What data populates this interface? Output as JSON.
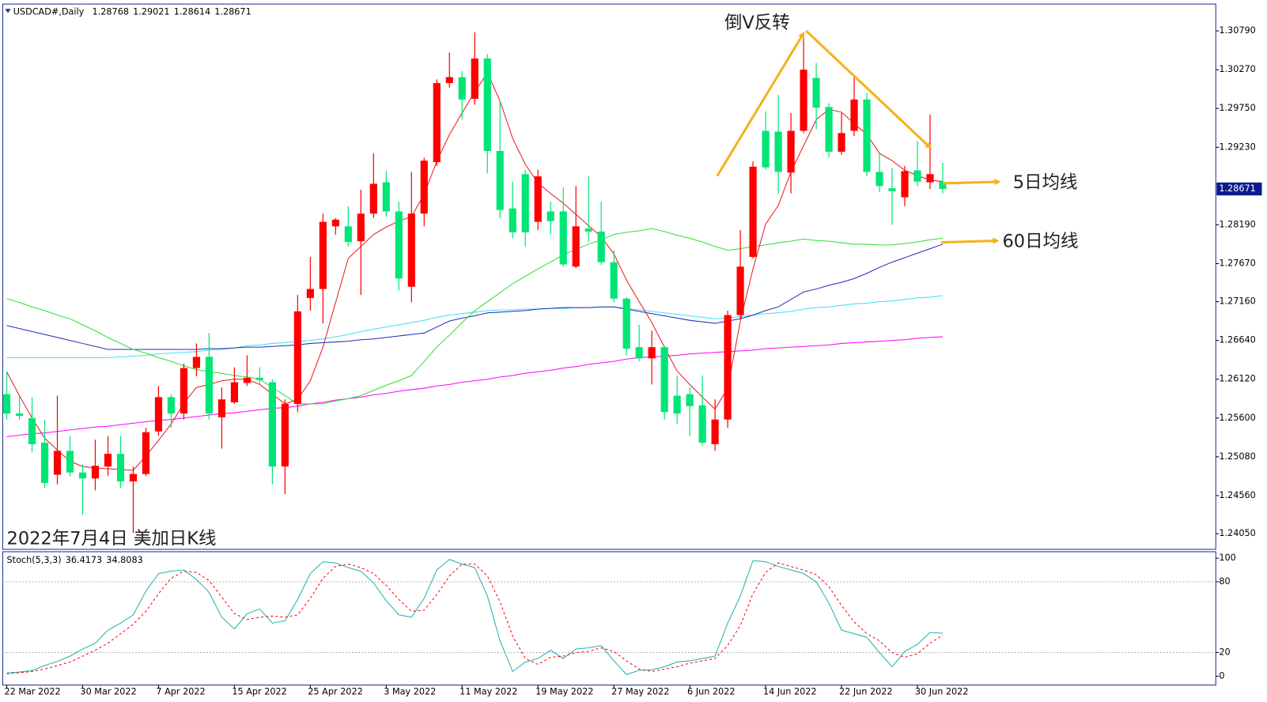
{
  "chart_data": [
    {
      "type": "candlestick",
      "title": "USDCAD#,Daily",
      "categories": [
        "22 Mar 2022",
        null,
        null,
        null,
        null,
        null,
        "30 Mar 2022",
        null,
        null,
        null,
        null,
        null,
        "7 Apr 2022",
        null,
        null,
        null,
        null,
        null,
        "15 Apr 2022",
        null,
        null,
        null,
        null,
        null,
        "25 Apr 2022",
        null,
        null,
        null,
        null,
        null,
        "3 May 2022",
        null,
        null,
        null,
        null,
        null,
        "11 May 2022",
        null,
        null,
        null,
        null,
        null,
        "19 May 2022",
        null,
        null,
        null,
        null,
        null,
        "27 May 2022",
        null,
        null,
        null,
        null,
        null,
        "6 Jun 2022",
        null,
        null,
        null,
        null,
        null,
        "14 Jun 2022",
        null,
        null,
        null,
        null,
        null,
        "22 Jun 2022",
        null,
        null,
        null,
        null,
        null,
        "30 Jun 2022",
        null,
        null
      ],
      "open": [
        1.2592,
        1.2566,
        1.256,
        1.2527,
        1.2484,
        1.2516,
        1.2487,
        1.2479,
        1.2495,
        1.2512,
        1.2475,
        1.2485,
        1.2542,
        1.2588,
        1.2566,
        1.2627,
        1.2642,
        1.2561,
        1.2581,
        1.2607,
        1.2614,
        1.2608,
        1.2495,
        1.2579,
        1.2721,
        1.2733,
        1.2817,
        1.2817,
        1.2797,
        1.2834,
        1.2876,
        1.2837,
        1.2736,
        1.2834,
        1.2903,
        1.3009,
        1.3017,
        1.2988,
        1.3042,
        1.2918,
        1.2841,
        1.2887,
        1.2823,
        1.2837,
        1.2837,
        1.2763,
        1.2814,
        1.281,
        1.2769,
        1.272,
        1.2655,
        1.264,
        1.2655,
        1.259,
        1.2592,
        1.2577,
        1.2525,
        1.2558,
        1.2698,
        1.2776,
        1.2945,
        1.2944,
        1.2889,
        1.2945,
        1.3016,
        1.2977,
        1.2917,
        1.2945,
        1.2987,
        1.289,
        1.2868,
        1.2856,
        1.2892,
        1.2876,
        1.28768
      ],
      "high": [
        1.2622,
        1.259,
        1.2588,
        1.2558,
        1.259,
        1.2536,
        1.2498,
        1.2531,
        1.2536,
        1.2536,
        1.2495,
        1.2547,
        1.2603,
        1.2592,
        1.2633,
        1.266,
        1.2674,
        1.2601,
        1.2628,
        1.2644,
        1.2628,
        1.2612,
        1.2585,
        1.2725,
        1.2776,
        1.2834,
        1.2828,
        1.2844,
        1.2866,
        1.2915,
        1.2891,
        1.285,
        1.289,
        1.2909,
        1.3014,
        1.305,
        1.3025,
        1.3077,
        1.3048,
        1.2985,
        1.2877,
        1.2893,
        1.2893,
        1.285,
        1.2869,
        1.2871,
        1.2884,
        1.285,
        1.2785,
        1.2722,
        1.2685,
        1.2677,
        1.2657,
        1.2617,
        1.2601,
        1.2617,
        1.2585,
        1.2704,
        1.2812,
        1.2904,
        1.2971,
        1.2993,
        1.2969,
        1.3077,
        1.3036,
        1.2982,
        1.2969,
        1.3017,
        1.2996,
        1.2915,
        1.2895,
        1.2898,
        1.2931,
        1.2967,
        1.29021
      ],
      "low": [
        1.2558,
        1.2558,
        1.2514,
        1.2466,
        1.2471,
        1.2482,
        1.243,
        1.2463,
        1.2482,
        1.2466,
        1.2406,
        1.2482,
        1.2536,
        1.2547,
        1.2558,
        1.2616,
        1.2558,
        1.2519,
        1.2579,
        1.2603,
        1.2606,
        1.2471,
        1.2458,
        1.2568,
        1.2704,
        1.2687,
        1.2806,
        1.279,
        1.2725,
        1.2828,
        1.283,
        1.2731,
        1.2715,
        1.2817,
        1.2898,
        1.3003,
        1.296,
        1.298,
        1.2888,
        1.2828,
        1.2801,
        1.279,
        1.2812,
        1.2806,
        1.2763,
        1.2761,
        1.2796,
        1.2765,
        1.2715,
        1.2644,
        1.2636,
        1.2605,
        1.2558,
        1.2552,
        1.2536,
        1.2523,
        1.2516,
        1.2547,
        1.2693,
        1.2774,
        1.2893,
        1.2861,
        1.2861,
        1.2942,
        1.2947,
        1.2909,
        1.2913,
        1.2938,
        1.2884,
        1.2863,
        1.2819,
        1.2844,
        1.2871,
        1.2867,
        1.28614
      ],
      "close": [
        1.2566,
        1.2563,
        1.2525,
        1.2473,
        1.2516,
        1.2487,
        1.2479,
        1.2496,
        1.2512,
        1.2475,
        1.2485,
        1.2541,
        1.2588,
        1.2566,
        1.2627,
        1.2642,
        1.2566,
        1.2585,
        1.2608,
        1.2614,
        1.2611,
        1.2495,
        1.2579,
        1.2703,
        1.2733,
        1.2823,
        1.2826,
        1.2796,
        1.2834,
        1.2874,
        1.2837,
        1.2747,
        1.2834,
        1.2905,
        1.3009,
        1.3017,
        1.2987,
        1.3042,
        1.2918,
        1.2839,
        1.2809,
        1.2809,
        1.2884,
        1.2824,
        1.2766,
        1.2817,
        1.281,
        1.2769,
        1.272,
        1.2653,
        1.264,
        1.2655,
        1.2568,
        1.2566,
        1.2576,
        1.2527,
        1.2558,
        1.2698,
        1.2763,
        1.2897,
        1.2896,
        1.289,
        1.2945,
        1.3027,
        1.2976,
        1.2917,
        1.2942,
        1.2987,
        1.289,
        1.2871,
        1.2864,
        1.2891,
        1.2877,
        1.2887,
        1.28671
      ],
      "up_color": "#ff0000",
      "down_color": "#00e676",
      "series": [
        {
          "color": "#ff00ff",
          "values": [
            1.2535,
            1.2537,
            1.2539,
            1.254,
            1.2542,
            1.2544,
            1.2546,
            1.2548,
            1.2549,
            1.2551,
            1.2553,
            1.2555,
            1.2557,
            1.2558,
            1.256,
            1.2562,
            1.2564,
            1.2566,
            1.2567,
            1.2569,
            1.2571,
            1.2573,
            1.2574,
            1.2576,
            1.2579,
            1.2581,
            1.2584,
            1.2586,
            1.2588,
            1.2591,
            1.2593,
            1.2596,
            1.2598,
            1.26,
            1.2603,
            1.2605,
            1.2608,
            1.261,
            1.2612,
            1.2615,
            1.2617,
            1.262,
            1.2622,
            1.2624,
            1.2627,
            1.2629,
            1.2632,
            1.2634,
            1.2636,
            1.2639,
            1.2641,
            1.2642,
            1.2643,
            1.2644,
            1.2646,
            1.2647,
            1.2648,
            1.2649,
            1.265,
            1.2651,
            1.2653,
            1.2654,
            1.2655,
            1.2656,
            1.2657,
            1.2658,
            1.266,
            1.2661,
            1.2662,
            1.2663,
            1.2664,
            1.2665,
            1.2667,
            1.2668,
            1.2669
          ]
        },
        {
          "color": "#40e0f0",
          "values": [
            1.2641,
            1.2641,
            1.2641,
            1.2641,
            1.2641,
            1.2641,
            1.2641,
            1.2641,
            1.2641,
            1.2642,
            1.2643,
            1.2644,
            1.2646,
            1.2647,
            1.2648,
            1.2649,
            1.2651,
            1.2652,
            1.2654,
            1.2657,
            1.2658,
            1.266,
            1.2661,
            1.2663,
            1.2664,
            1.2666,
            1.2669,
            1.2672,
            1.2676,
            1.2679,
            1.2682,
            1.2685,
            1.2688,
            1.2691,
            1.2695,
            1.2698,
            1.27,
            1.2702,
            1.2704,
            1.2705,
            1.2705,
            1.2706,
            1.2706,
            1.2707,
            1.2707,
            1.2708,
            1.2708,
            1.2709,
            1.2709,
            1.2707,
            1.2705,
            1.2703,
            1.2701,
            1.2699,
            1.2697,
            1.2695,
            1.2693,
            1.2694,
            1.2696,
            1.2698,
            1.27,
            1.2701,
            1.2703,
            1.2706,
            1.2708,
            1.2709,
            1.2711,
            1.2713,
            1.2714,
            1.2716,
            1.2717,
            1.2719,
            1.2721,
            1.2722,
            1.2724
          ]
        },
        {
          "color": "#1f2fb4",
          "values": [
            1.2684,
            1.268,
            1.2676,
            1.2672,
            1.2668,
            1.2664,
            1.266,
            1.2656,
            1.2652,
            1.2652,
            1.2652,
            1.2652,
            1.2652,
            1.2652,
            1.2652,
            1.2652,
            1.2653,
            1.2653,
            1.2654,
            1.2655,
            1.2655,
            1.2656,
            1.2657,
            1.2658,
            1.266,
            1.2661,
            1.2662,
            1.2663,
            1.2665,
            1.2666,
            1.2668,
            1.267,
            1.2672,
            1.2674,
            1.2682,
            1.269,
            1.2694,
            1.2697,
            1.2701,
            1.2702,
            1.2703,
            1.2704,
            1.2706,
            1.2707,
            1.2708,
            1.2708,
            1.2708,
            1.2709,
            1.2709,
            1.2706,
            1.2703,
            1.27,
            1.2697,
            1.2694,
            1.2691,
            1.2689,
            1.2687,
            1.269,
            1.2693,
            1.2698,
            1.2704,
            1.2709,
            1.2719,
            1.2729,
            1.2733,
            1.2738,
            1.2742,
            1.2747,
            1.2754,
            1.2762,
            1.2769,
            1.2775,
            1.2781,
            1.2787,
            1.2793
          ]
        },
        {
          "color": "#33dd33",
          "values": [
            1.272,
            1.2715,
            1.2709,
            1.2704,
            1.2698,
            1.2693,
            1.2685,
            1.2677,
            1.2668,
            1.266,
            1.2652,
            1.2647,
            1.2641,
            1.2636,
            1.263,
            1.2625,
            1.2622,
            1.262,
            1.2617,
            1.2615,
            1.2612,
            1.2601,
            1.259,
            1.2579,
            1.2579,
            1.2579,
            1.2583,
            1.2586,
            1.259,
            1.2597,
            1.2604,
            1.261,
            1.2617,
            1.2636,
            1.2655,
            1.2671,
            1.2688,
            1.2704,
            1.2716,
            1.2728,
            1.274,
            1.275,
            1.276,
            1.2769,
            1.2779,
            1.2786,
            1.2793,
            1.2799,
            1.2806,
            1.2809,
            1.2811,
            1.2814,
            1.281,
            1.2805,
            1.2801,
            1.2796,
            1.279,
            1.2785,
            1.2787,
            1.279,
            1.2792,
            1.2795,
            1.2797,
            1.28,
            1.2798,
            1.2797,
            1.2795,
            1.2793,
            1.2793,
            1.2792,
            1.2792,
            1.2794,
            1.2796,
            1.2799,
            1.2801
          ]
        },
        {
          "color": "#e8191e",
          "values": [
            1.2622,
            1.259,
            1.256,
            1.2533,
            1.2517,
            1.2502,
            1.2495,
            1.2493,
            1.2492,
            1.2491,
            1.249,
            1.2509,
            1.253,
            1.2552,
            1.258,
            1.2601,
            1.2605,
            1.261,
            1.2612,
            1.2612,
            1.2605,
            1.2592,
            1.2579,
            1.2585,
            1.261,
            1.2655,
            1.2715,
            1.2774,
            1.279,
            1.2806,
            1.2816,
            1.2824,
            1.283,
            1.286,
            1.2904,
            1.294,
            1.2969,
            1.2997,
            1.3023,
            1.2985,
            1.2935,
            1.29,
            1.2875,
            1.2861,
            1.2848,
            1.2833,
            1.2818,
            1.2803,
            1.278,
            1.2745,
            1.2716,
            1.2688,
            1.2655,
            1.2623,
            1.2605,
            1.2588,
            1.2572,
            1.26,
            1.269,
            1.276,
            1.282,
            1.2845,
            1.289,
            1.2925,
            1.296,
            1.2974,
            1.297,
            1.2955,
            1.294,
            1.2915,
            1.2905,
            1.2892,
            1.2885,
            1.2879,
            1.2877
          ]
        }
      ],
      "ylim": [
        1.2384,
        1.3115
      ],
      "yticks": [
        {
          "value": 1.3079,
          "label": "1.30790"
        },
        {
          "value": 1.3027,
          "label": "1.30270"
        },
        {
          "value": 1.2975,
          "label": "1.29750"
        },
        {
          "value": 1.2923,
          "label": "1.29230"
        },
        {
          "value": 1.2819,
          "label": "1.28190"
        },
        {
          "value": 1.2767,
          "label": "1.27670"
        },
        {
          "value": 1.2716,
          "label": "1.27160"
        },
        {
          "value": 1.2664,
          "label": "1.26640"
        },
        {
          "value": 1.2612,
          "label": "1.26120"
        },
        {
          "value": 1.256,
          "label": "1.25600"
        },
        {
          "value": 1.2508,
          "label": "1.25080"
        },
        {
          "value": 1.2456,
          "label": "1.24560"
        },
        {
          "value": 1.2405,
          "label": "1.24050"
        }
      ],
      "annotations": [
        "倒V反转",
        "5日均线",
        "60日均线",
        "2022年7月4日 美加日K线"
      ]
    },
    {
      "type": "line",
      "title": "Stoch(5,3,3)",
      "series": [
        {
          "color": "#20b2aa",
          "values": [
            2.7,
            3.5,
            4.8,
            9,
            12.5,
            17,
            23,
            28,
            39,
            45,
            52,
            72,
            87,
            89,
            90,
            82,
            71,
            50,
            40,
            53,
            57,
            45,
            47,
            65,
            87,
            97,
            96,
            92,
            89,
            79,
            64,
            52,
            50,
            66,
            90,
            99,
            95,
            92,
            68,
            30,
            4,
            12,
            15,
            22,
            15,
            23,
            24,
            26,
            13,
            1.4,
            5,
            5.5,
            8,
            12,
            13,
            15,
            17,
            45,
            68,
            98,
            97,
            93,
            90,
            87,
            80,
            62,
            39,
            36,
            33,
            20,
            8,
            21,
            27,
            37,
            36.4173
          ]
        },
        {
          "color": "#ff0000",
          "dash": true,
          "values": [
            2,
            3,
            4,
            6,
            9,
            12,
            17,
            22,
            28,
            36,
            44,
            55,
            70,
            83,
            89,
            88,
            81,
            67,
            53,
            48,
            50,
            51,
            50,
            52,
            66,
            83,
            93,
            95,
            92,
            87,
            77,
            65,
            55,
            56,
            69,
            85,
            95,
            95,
            85,
            63,
            34,
            15,
            10,
            16,
            17,
            20,
            21,
            24,
            21,
            13,
            6,
            4,
            6,
            8,
            11,
            13,
            15,
            26,
            43,
            70,
            88,
            96,
            93,
            90,
            86,
            76,
            60,
            46,
            36,
            30,
            20,
            16,
            19,
            28,
            34.8083
          ]
        }
      ],
      "ylim": [
        -7.5,
        104.8
      ],
      "yticks": [
        0,
        20,
        80,
        100
      ],
      "levels": [
        20,
        80
      ]
    }
  ]
}
